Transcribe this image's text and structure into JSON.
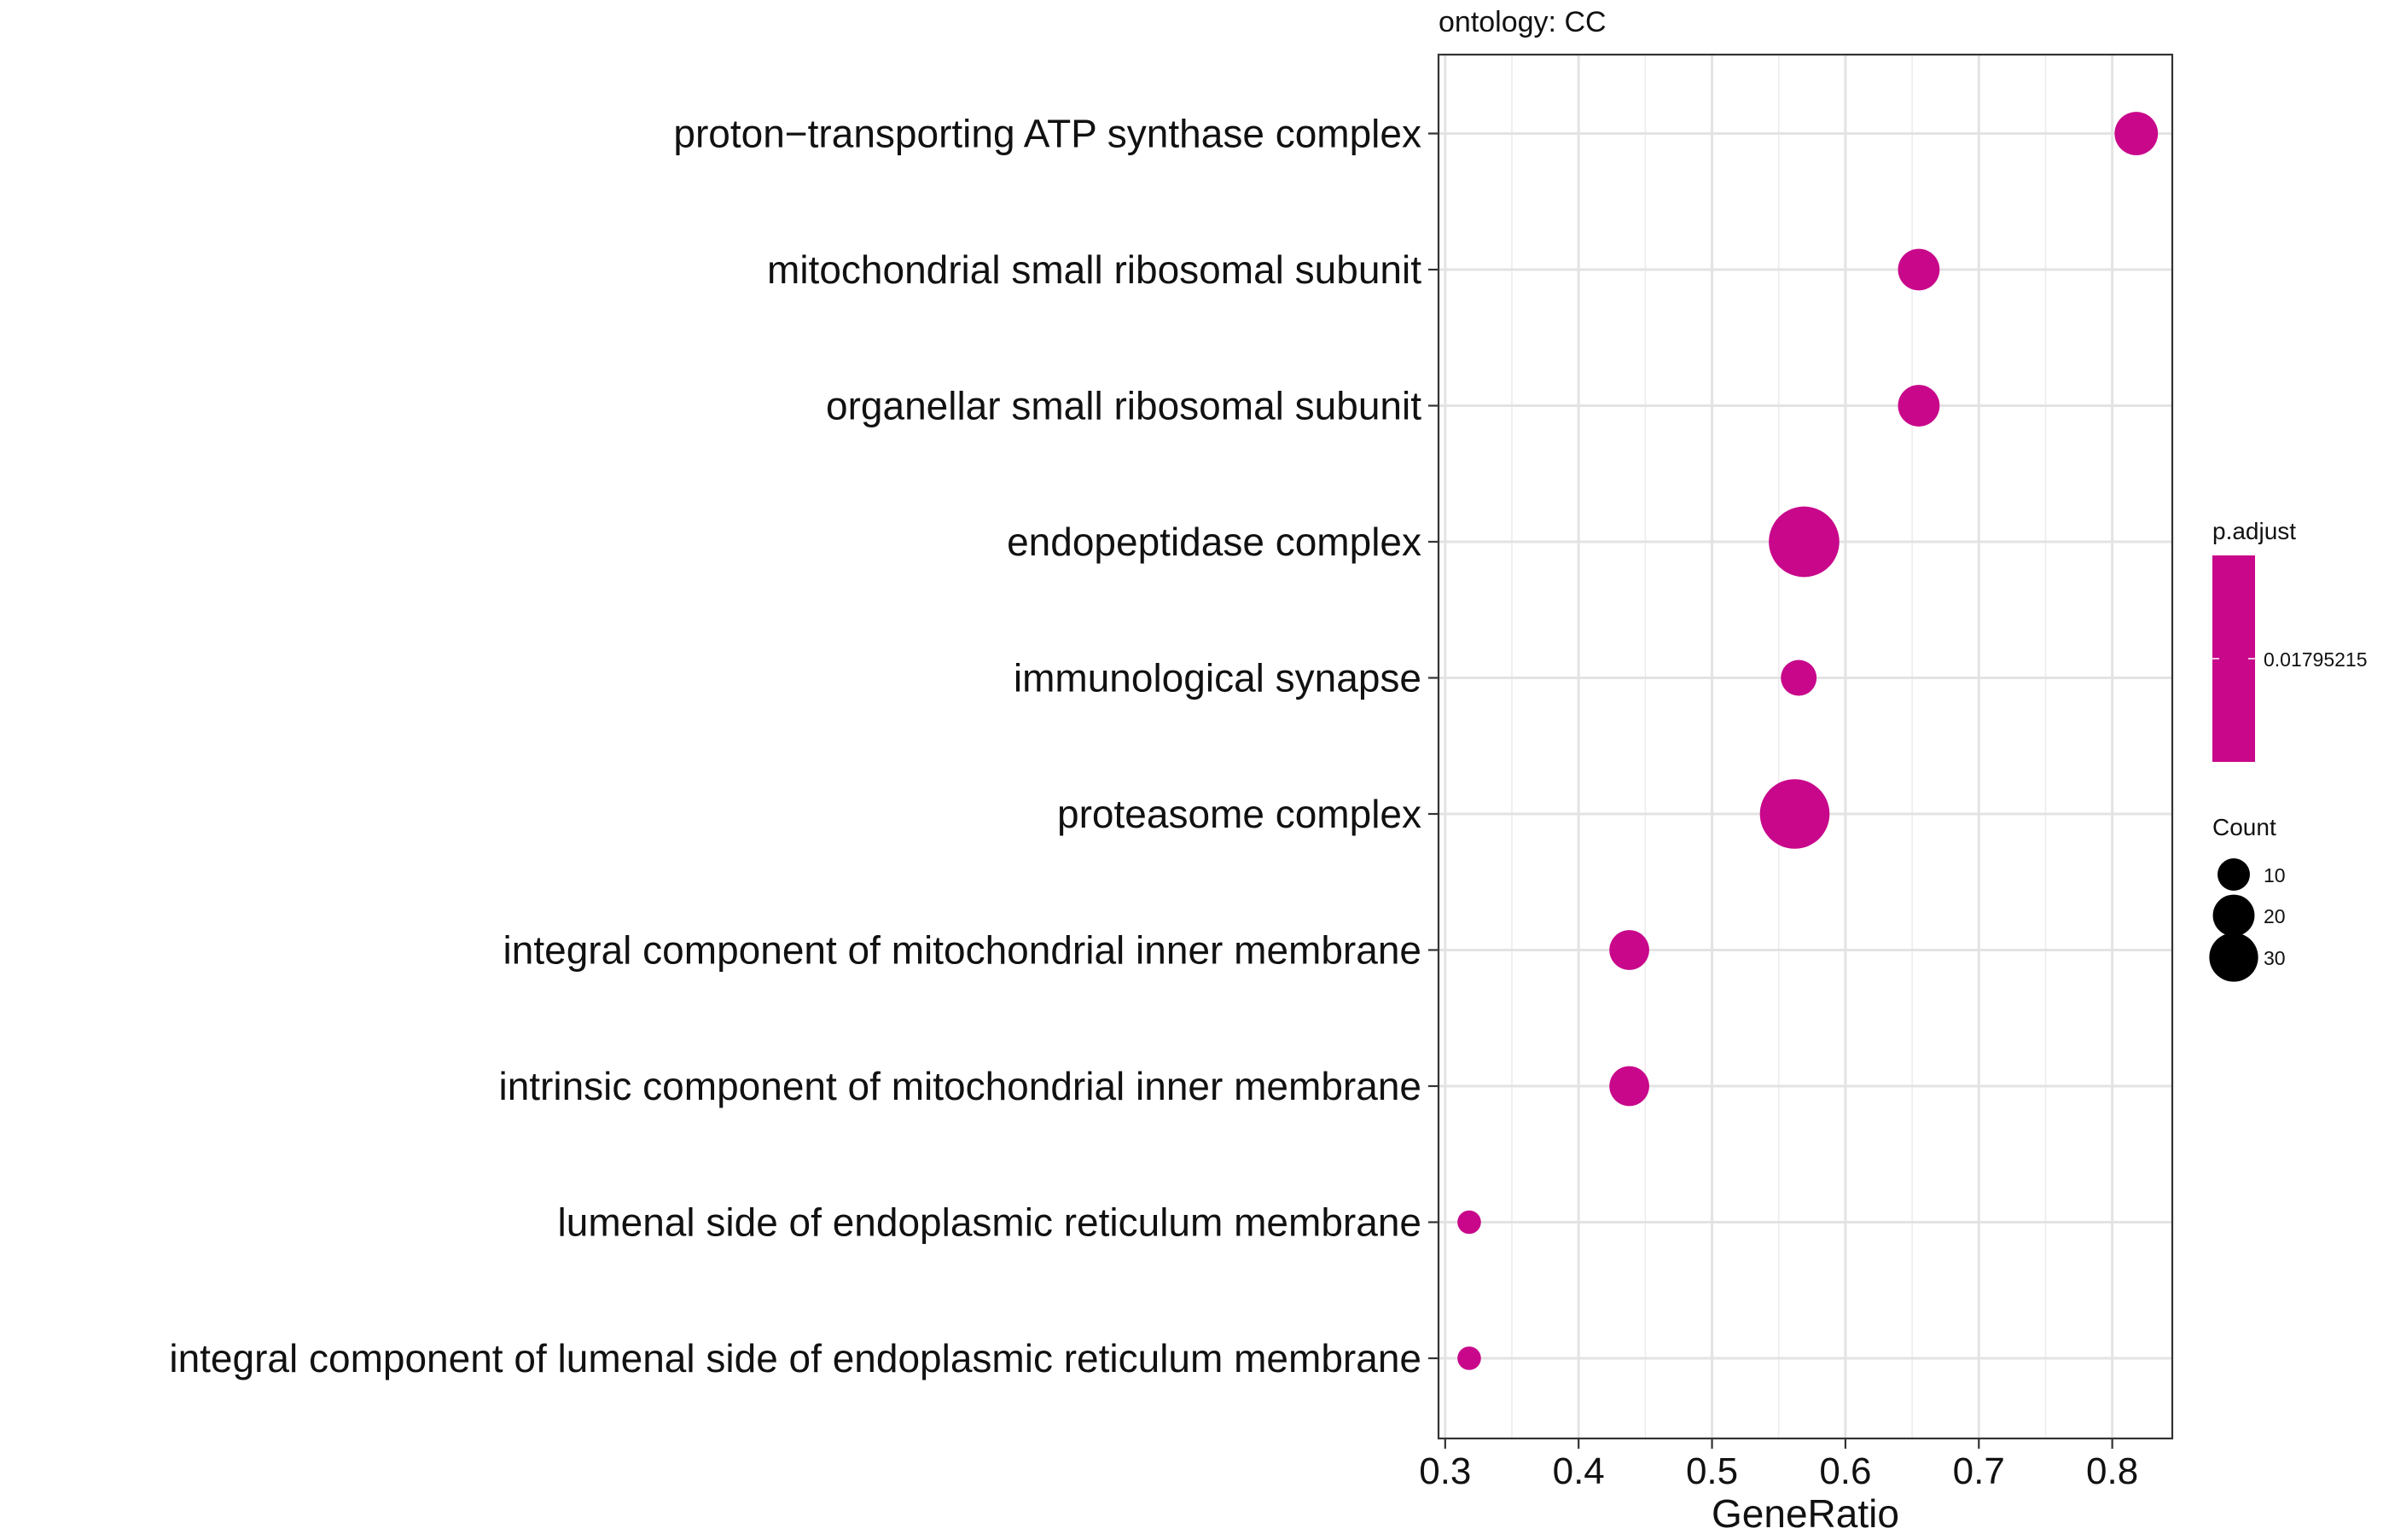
{
  "chart_data": {
    "type": "scatter",
    "title": "",
    "facet_label": "ontology: CC",
    "xlabel": "GeneRatio",
    "ylabel": "",
    "xlim": [
      0.295,
      0.845
    ],
    "x_ticks": [
      0.3,
      0.4,
      0.5,
      0.6,
      0.7,
      0.8
    ],
    "x_tick_labels": [
      "0.3",
      "0.4",
      "0.5",
      "0.6",
      "0.7",
      "0.8"
    ],
    "grid": true,
    "categories": [
      "proton−transporting ATP synthase complex",
      "mitochondrial small ribosomal subunit",
      "organellar small ribosomal subunit",
      "endopeptidase complex",
      "immunological synapse",
      "proteasome complex",
      "integral component of mitochondrial inner membrane",
      "intrinsic component of mitochondrial inner membrane",
      "lumenal side of endoplasmic reticulum membrane",
      "integral component of lumenal side of endoplasmic reticulum membrane"
    ],
    "points": [
      {
        "term": "proton−transporting ATP synthase complex",
        "gene_ratio": 0.818,
        "count": 9,
        "p_adjust": 0.01795215
      },
      {
        "term": "mitochondrial small ribosomal subunit",
        "gene_ratio": 0.655,
        "count": 8,
        "p_adjust": 0.01795215
      },
      {
        "term": "organellar small ribosomal subunit",
        "gene_ratio": 0.655,
        "count": 8,
        "p_adjust": 0.01795215
      },
      {
        "term": "endopeptidase complex",
        "gene_ratio": 0.569,
        "count": 33,
        "p_adjust": 0.01795215
      },
      {
        "term": "immunological synapse",
        "gene_ratio": 0.565,
        "count": 5,
        "p_adjust": 0.01795215
      },
      {
        "term": "proteasome complex",
        "gene_ratio": 0.562,
        "count": 32,
        "p_adjust": 0.01795215
      },
      {
        "term": "integral component of mitochondrial inner membrane",
        "gene_ratio": 0.438,
        "count": 7,
        "p_adjust": 0.01795215
      },
      {
        "term": "intrinsic component of mitochondrial inner membrane",
        "gene_ratio": 0.438,
        "count": 7,
        "p_adjust": 0.01795215
      },
      {
        "term": "lumenal side of endoplasmic reticulum membrane",
        "gene_ratio": 0.318,
        "count": 1,
        "p_adjust": 0.01795215
      },
      {
        "term": "integral component of lumenal side of endoplasmic reticulum membrane",
        "gene_ratio": 0.318,
        "count": 1,
        "p_adjust": 0.01795215
      }
    ],
    "point_color": "#c8078b",
    "color_legend": {
      "title": "p.adjust",
      "tick_value": "0.01795215",
      "color": "#c8078b"
    },
    "size_legend": {
      "title": "Count",
      "values": [
        10,
        20,
        30
      ],
      "labels": [
        "10",
        "20",
        "30"
      ]
    }
  }
}
